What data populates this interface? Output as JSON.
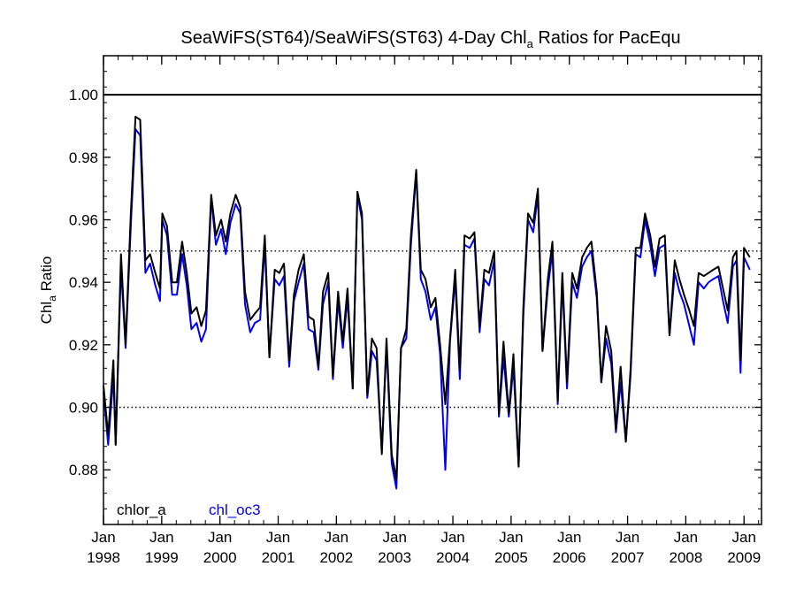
{
  "chart_data": {
    "type": "line",
    "title": {
      "main": "SeaWiFS(ST64)/SeaWiFS(ST63) 4-Day Chl",
      "sub": "a",
      "rest": " Ratios for PacEqu"
    },
    "ylabel": {
      "main": "Chl",
      "sub": "a",
      "rest": " Ratio"
    },
    "ylim": [
      0.8625,
      1.0125
    ],
    "xlim": [
      1998.0,
      2009.3
    ],
    "y_ticks": [
      0.88,
      0.9,
      0.92,
      0.94,
      0.96,
      0.98,
      1.0
    ],
    "y_tick_labels": [
      "0.88",
      "0.90",
      "0.92",
      "0.94",
      "0.96",
      "0.98",
      "1.00"
    ],
    "x_ticks": [
      1998,
      1999,
      2000,
      2001,
      2002,
      2003,
      2004,
      2005,
      2006,
      2007,
      2008,
      2009
    ],
    "x_tick_labels": [
      [
        "Jan",
        "1998"
      ],
      [
        "Jan",
        "1999"
      ],
      [
        "Jan",
        "2000"
      ],
      [
        "Jan",
        "2001"
      ],
      [
        "Jan",
        "2002"
      ],
      [
        "Jan",
        "2003"
      ],
      [
        "Jan",
        "2004"
      ],
      [
        "Jan",
        "2005"
      ],
      [
        "Jan",
        "2006"
      ],
      [
        "Jan",
        "2007"
      ],
      [
        "Jan",
        "2008"
      ],
      [
        "Jan",
        "2009"
      ]
    ],
    "reference_lines": [
      {
        "y": 1.0,
        "style": "solid"
      },
      {
        "y": 0.95,
        "style": "dotted"
      },
      {
        "y": 0.9,
        "style": "dotted"
      }
    ],
    "series": [
      {
        "name": "chlor_a",
        "color": "#000000",
        "points": [
          [
            1998.0,
            0.907
          ],
          [
            1998.08,
            0.891
          ],
          [
            1998.17,
            0.915
          ],
          [
            1998.21,
            0.888
          ],
          [
            1998.3,
            0.949
          ],
          [
            1998.38,
            0.92
          ],
          [
            1998.47,
            0.962
          ],
          [
            1998.55,
            0.993
          ],
          [
            1998.63,
            0.992
          ],
          [
            1998.72,
            0.947
          ],
          [
            1998.8,
            0.949
          ],
          [
            1998.89,
            0.943
          ],
          [
            1998.97,
            0.938
          ],
          [
            1999.01,
            0.962
          ],
          [
            1999.09,
            0.958
          ],
          [
            1999.18,
            0.94
          ],
          [
            1999.26,
            0.94
          ],
          [
            1999.35,
            0.953
          ],
          [
            1999.43,
            0.943
          ],
          [
            1999.51,
            0.93
          ],
          [
            1999.6,
            0.932
          ],
          [
            1999.68,
            0.926
          ],
          [
            1999.76,
            0.931
          ],
          [
            1999.85,
            0.968
          ],
          [
            1999.93,
            0.955
          ],
          [
            2000.02,
            0.96
          ],
          [
            2000.1,
            0.953
          ],
          [
            2000.18,
            0.962
          ],
          [
            2000.27,
            0.968
          ],
          [
            2000.35,
            0.964
          ],
          [
            2000.43,
            0.937
          ],
          [
            2000.52,
            0.928
          ],
          [
            2000.6,
            0.93
          ],
          [
            2000.69,
            0.932
          ],
          [
            2000.77,
            0.955
          ],
          [
            2000.85,
            0.916
          ],
          [
            2000.94,
            0.944
          ],
          [
            2001.02,
            0.943
          ],
          [
            2001.1,
            0.946
          ],
          [
            2001.19,
            0.915
          ],
          [
            2001.27,
            0.936
          ],
          [
            2001.35,
            0.944
          ],
          [
            2001.44,
            0.949
          ],
          [
            2001.52,
            0.929
          ],
          [
            2001.61,
            0.928
          ],
          [
            2001.69,
            0.913
          ],
          [
            2001.77,
            0.937
          ],
          [
            2001.86,
            0.943
          ],
          [
            2001.94,
            0.91
          ],
          [
            2002.03,
            0.937
          ],
          [
            2002.11,
            0.921
          ],
          [
            2002.19,
            0.938
          ],
          [
            2002.28,
            0.906
          ],
          [
            2002.36,
            0.969
          ],
          [
            2002.44,
            0.962
          ],
          [
            2002.53,
            0.904
          ],
          [
            2002.61,
            0.922
          ],
          [
            2002.69,
            0.919
          ],
          [
            2002.78,
            0.885
          ],
          [
            2002.86,
            0.922
          ],
          [
            2002.95,
            0.885
          ],
          [
            2003.03,
            0.877
          ],
          [
            2003.11,
            0.919
          ],
          [
            2003.2,
            0.925
          ],
          [
            2003.28,
            0.955
          ],
          [
            2003.37,
            0.976
          ],
          [
            2003.45,
            0.944
          ],
          [
            2003.53,
            0.941
          ],
          [
            2003.62,
            0.932
          ],
          [
            2003.7,
            0.935
          ],
          [
            2003.78,
            0.92
          ],
          [
            2003.87,
            0.901
          ],
          [
            2003.95,
            0.922
          ],
          [
            2004.04,
            0.944
          ],
          [
            2004.12,
            0.912
          ],
          [
            2004.2,
            0.955
          ],
          [
            2004.29,
            0.954
          ],
          [
            2004.37,
            0.956
          ],
          [
            2004.46,
            0.926
          ],
          [
            2004.54,
            0.944
          ],
          [
            2004.62,
            0.943
          ],
          [
            2004.71,
            0.95
          ],
          [
            2004.79,
            0.898
          ],
          [
            2004.87,
            0.921
          ],
          [
            2004.96,
            0.898
          ],
          [
            2005.04,
            0.917
          ],
          [
            2005.13,
            0.881
          ],
          [
            2005.21,
            0.932
          ],
          [
            2005.29,
            0.962
          ],
          [
            2005.38,
            0.959
          ],
          [
            2005.46,
            0.97
          ],
          [
            2005.54,
            0.918
          ],
          [
            2005.63,
            0.941
          ],
          [
            2005.71,
            0.953
          ],
          [
            2005.8,
            0.902
          ],
          [
            2005.88,
            0.943
          ],
          [
            2005.96,
            0.908
          ],
          [
            2006.05,
            0.943
          ],
          [
            2006.13,
            0.938
          ],
          [
            2006.22,
            0.948
          ],
          [
            2006.3,
            0.951
          ],
          [
            2006.38,
            0.953
          ],
          [
            2006.47,
            0.937
          ],
          [
            2006.55,
            0.908
          ],
          [
            2006.63,
            0.926
          ],
          [
            2006.72,
            0.918
          ],
          [
            2006.8,
            0.893
          ],
          [
            2006.88,
            0.913
          ],
          [
            2006.97,
            0.889
          ],
          [
            2007.05,
            0.912
          ],
          [
            2007.14,
            0.951
          ],
          [
            2007.22,
            0.951
          ],
          [
            2007.3,
            0.962
          ],
          [
            2007.39,
            0.955
          ],
          [
            2007.47,
            0.945
          ],
          [
            2007.55,
            0.954
          ],
          [
            2007.64,
            0.955
          ],
          [
            2007.72,
            0.923
          ],
          [
            2007.81,
            0.947
          ],
          [
            2007.89,
            0.941
          ],
          [
            2007.97,
            0.936
          ],
          [
            2008.06,
            0.931
          ],
          [
            2008.14,
            0.926
          ],
          [
            2008.22,
            0.943
          ],
          [
            2008.31,
            0.942
          ],
          [
            2008.39,
            0.943
          ],
          [
            2008.47,
            0.944
          ],
          [
            2008.56,
            0.945
          ],
          [
            2008.64,
            0.938
          ],
          [
            2008.72,
            0.931
          ],
          [
            2008.81,
            0.948
          ],
          [
            2008.87,
            0.95
          ],
          [
            2008.94,
            0.915
          ],
          [
            2009.0,
            0.951
          ],
          [
            2009.1,
            0.948
          ]
        ]
      },
      {
        "name": "chl_oc3",
        "color": "#0000ee",
        "points": [
          [
            1998.0,
            0.905
          ],
          [
            1998.08,
            0.888
          ],
          [
            1998.17,
            0.91
          ],
          [
            1998.21,
            0.888
          ],
          [
            1998.3,
            0.945
          ],
          [
            1998.38,
            0.919
          ],
          [
            1998.47,
            0.958
          ],
          [
            1998.55,
            0.989
          ],
          [
            1998.63,
            0.987
          ],
          [
            1998.72,
            0.943
          ],
          [
            1998.8,
            0.946
          ],
          [
            1998.89,
            0.939
          ],
          [
            1998.97,
            0.934
          ],
          [
            1999.01,
            0.96
          ],
          [
            1999.09,
            0.955
          ],
          [
            1999.18,
            0.936
          ],
          [
            1999.26,
            0.936
          ],
          [
            1999.35,
            0.949
          ],
          [
            1999.43,
            0.939
          ],
          [
            1999.51,
            0.925
          ],
          [
            1999.6,
            0.927
          ],
          [
            1999.68,
            0.921
          ],
          [
            1999.76,
            0.925
          ],
          [
            1999.85,
            0.967
          ],
          [
            1999.93,
            0.952
          ],
          [
            2000.02,
            0.957
          ],
          [
            2000.1,
            0.949
          ],
          [
            2000.18,
            0.959
          ],
          [
            2000.27,
            0.965
          ],
          [
            2000.35,
            0.962
          ],
          [
            2000.43,
            0.933
          ],
          [
            2000.52,
            0.924
          ],
          [
            2000.6,
            0.927
          ],
          [
            2000.69,
            0.928
          ],
          [
            2000.77,
            0.952
          ],
          [
            2000.85,
            0.916
          ],
          [
            2000.94,
            0.941
          ],
          [
            2001.02,
            0.939
          ],
          [
            2001.1,
            0.942
          ],
          [
            2001.19,
            0.913
          ],
          [
            2001.27,
            0.934
          ],
          [
            2001.35,
            0.94
          ],
          [
            2001.44,
            0.946
          ],
          [
            2001.52,
            0.925
          ],
          [
            2001.61,
            0.924
          ],
          [
            2001.69,
            0.912
          ],
          [
            2001.77,
            0.933
          ],
          [
            2001.86,
            0.94
          ],
          [
            2001.94,
            0.909
          ],
          [
            2002.03,
            0.934
          ],
          [
            2002.11,
            0.919
          ],
          [
            2002.19,
            0.935
          ],
          [
            2002.28,
            0.906
          ],
          [
            2002.36,
            0.968
          ],
          [
            2002.44,
            0.96
          ],
          [
            2002.53,
            0.903
          ],
          [
            2002.61,
            0.918
          ],
          [
            2002.69,
            0.915
          ],
          [
            2002.78,
            0.886
          ],
          [
            2002.86,
            0.92
          ],
          [
            2002.95,
            0.882
          ],
          [
            2003.03,
            0.874
          ],
          [
            2003.11,
            0.919
          ],
          [
            2003.2,
            0.922
          ],
          [
            2003.28,
            0.952
          ],
          [
            2003.37,
            0.975
          ],
          [
            2003.45,
            0.941
          ],
          [
            2003.53,
            0.937
          ],
          [
            2003.62,
            0.928
          ],
          [
            2003.7,
            0.932
          ],
          [
            2003.78,
            0.917
          ],
          [
            2003.87,
            0.88
          ],
          [
            2003.95,
            0.921
          ],
          [
            2004.04,
            0.941
          ],
          [
            2004.12,
            0.909
          ],
          [
            2004.2,
            0.952
          ],
          [
            2004.29,
            0.951
          ],
          [
            2004.37,
            0.954
          ],
          [
            2004.46,
            0.924
          ],
          [
            2004.54,
            0.941
          ],
          [
            2004.62,
            0.939
          ],
          [
            2004.71,
            0.947
          ],
          [
            2004.79,
            0.897
          ],
          [
            2004.87,
            0.916
          ],
          [
            2004.96,
            0.897
          ],
          [
            2005.04,
            0.913
          ],
          [
            2005.13,
            0.881
          ],
          [
            2005.21,
            0.929
          ],
          [
            2005.29,
            0.96
          ],
          [
            2005.38,
            0.956
          ],
          [
            2005.46,
            0.968
          ],
          [
            2005.54,
            0.918
          ],
          [
            2005.63,
            0.938
          ],
          [
            2005.71,
            0.95
          ],
          [
            2005.8,
            0.901
          ],
          [
            2005.88,
            0.94
          ],
          [
            2005.96,
            0.906
          ],
          [
            2006.05,
            0.94
          ],
          [
            2006.13,
            0.935
          ],
          [
            2006.22,
            0.945
          ],
          [
            2006.3,
            0.948
          ],
          [
            2006.38,
            0.95
          ],
          [
            2006.47,
            0.935
          ],
          [
            2006.55,
            0.908
          ],
          [
            2006.63,
            0.922
          ],
          [
            2006.72,
            0.914
          ],
          [
            2006.8,
            0.892
          ],
          [
            2006.88,
            0.908
          ],
          [
            2006.97,
            0.889
          ],
          [
            2007.05,
            0.91
          ],
          [
            2007.14,
            0.949
          ],
          [
            2007.22,
            0.948
          ],
          [
            2007.3,
            0.96
          ],
          [
            2007.39,
            0.952
          ],
          [
            2007.47,
            0.942
          ],
          [
            2007.55,
            0.951
          ],
          [
            2007.64,
            0.952
          ],
          [
            2007.72,
            0.923
          ],
          [
            2007.81,
            0.943
          ],
          [
            2007.89,
            0.937
          ],
          [
            2007.97,
            0.933
          ],
          [
            2008.06,
            0.926
          ],
          [
            2008.14,
            0.92
          ],
          [
            2008.22,
            0.94
          ],
          [
            2008.31,
            0.938
          ],
          [
            2008.39,
            0.94
          ],
          [
            2008.47,
            0.941
          ],
          [
            2008.56,
            0.942
          ],
          [
            2008.64,
            0.934
          ],
          [
            2008.72,
            0.927
          ],
          [
            2008.81,
            0.945
          ],
          [
            2008.87,
            0.947
          ],
          [
            2008.94,
            0.911
          ],
          [
            2009.0,
            0.948
          ],
          [
            2009.1,
            0.944
          ]
        ]
      }
    ],
    "legend": {
      "position": "bottom-left",
      "entries": [
        {
          "label": "chlor_a",
          "color": "#000000"
        },
        {
          "label": "chl_oc3",
          "color": "#0000ee"
        }
      ]
    }
  }
}
